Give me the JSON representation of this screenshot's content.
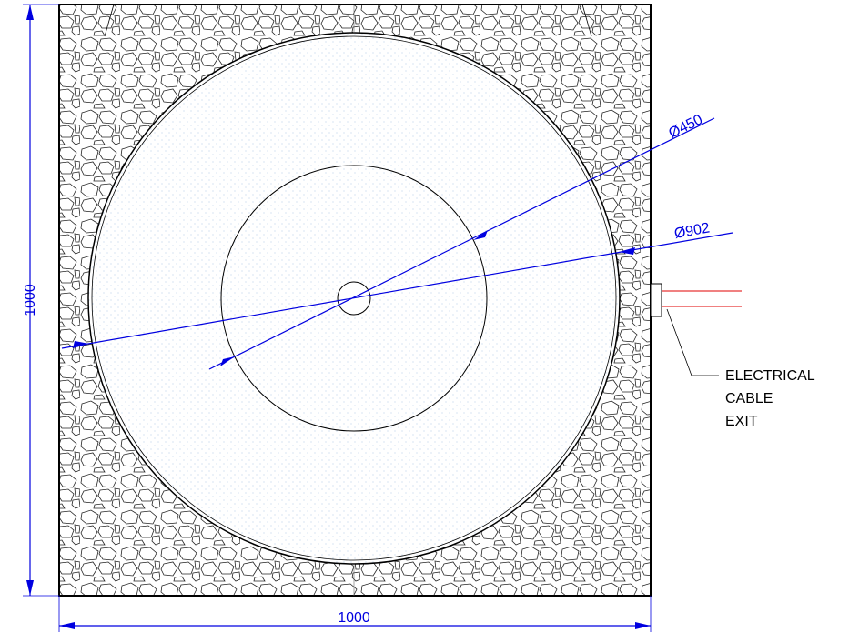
{
  "dimensions": {
    "inner_diameter": "Ø450",
    "outer_diameter": "Ø902",
    "height": "1000",
    "width": "1000"
  },
  "callout": {
    "lines": [
      "ELECTRICAL",
      "CABLE",
      "EXIT"
    ]
  }
}
